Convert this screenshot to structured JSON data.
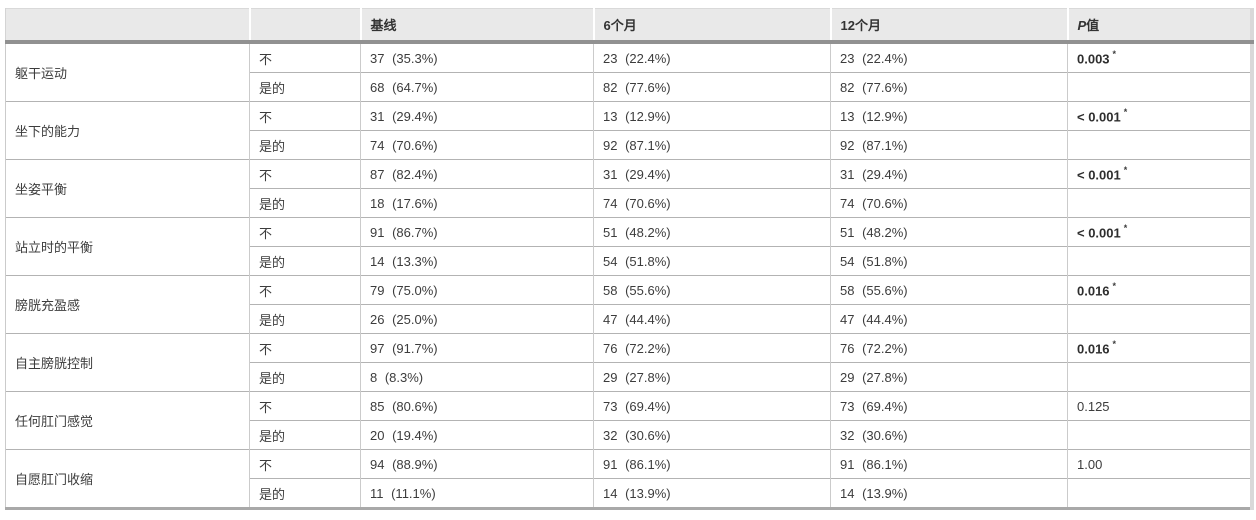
{
  "colors": {
    "header_bg": "#e9e9e9",
    "header_rule": "#919191",
    "grid_horizontal": "#b3b3b3",
    "grid_vertical": "#cbcbcb",
    "outer_right": "#d9d9d9",
    "outer_bottom": "#a9a9a9",
    "text": "#3c3c3c"
  },
  "table": {
    "header": {
      "col_category": "",
      "col_answer": "",
      "baseline": "基线",
      "month6": "6个月",
      "month12": "12个月",
      "p_italic": "P",
      "p_rest": "值"
    },
    "groups": [
      {
        "label": "躯干运动",
        "rows": [
          {
            "answer": "不",
            "baseline": "37 (35.3%)",
            "month6": "23 (22.4%)",
            "month12": "23 (22.4%)"
          },
          {
            "answer": "是的",
            "baseline": "68 (64.7%)",
            "month6": "82 (77.6%)",
            "month12": "82 (77.6%)"
          }
        ],
        "p": {
          "text": "0.003",
          "asterisk": "*",
          "bold": true
        }
      },
      {
        "label": "坐下的能力",
        "rows": [
          {
            "answer": "不",
            "baseline": "31 (29.4%)",
            "month6": "13 (12.9%)",
            "month12": "13 (12.9%)"
          },
          {
            "answer": "是的",
            "baseline": "74 (70.6%)",
            "month6": "92 (87.1%)",
            "month12": "92 (87.1%)"
          }
        ],
        "p": {
          "text": "< 0.001",
          "asterisk": "*",
          "bold": true
        }
      },
      {
        "label": "坐姿平衡",
        "rows": [
          {
            "answer": "不",
            "baseline": "87 (82.4%)",
            "month6": "31 (29.4%)",
            "month12": "31 (29.4%)"
          },
          {
            "answer": "是的",
            "baseline": "18 (17.6%)",
            "month6": "74 (70.6%)",
            "month12": "74 (70.6%)"
          }
        ],
        "p": {
          "text": "< 0.001",
          "asterisk": "*",
          "bold": true
        }
      },
      {
        "label": "站立时的平衡",
        "rows": [
          {
            "answer": "不",
            "baseline": "91 (86.7%)",
            "month6": "51 (48.2%)",
            "month12": "51 (48.2%)"
          },
          {
            "answer": "是的",
            "baseline": "14 (13.3%)",
            "month6": "54 (51.8%)",
            "month12": "54 (51.8%)"
          }
        ],
        "p": {
          "text": "< 0.001",
          "asterisk": "*",
          "bold": true
        }
      },
      {
        "label": "膀胱充盈感",
        "rows": [
          {
            "answer": "不",
            "baseline": "79 (75.0%)",
            "month6": "58 (55.6%)",
            "month12": "58 (55.6%)"
          },
          {
            "answer": "是的",
            "baseline": "26 (25.0%)",
            "month6": "47 (44.4%)",
            "month12": "47 (44.4%)"
          }
        ],
        "p": {
          "text": "0.016",
          "asterisk": "*",
          "bold": true
        }
      },
      {
        "label": "自主膀胱控制",
        "rows": [
          {
            "answer": "不",
            "baseline": "97 (91.7%)",
            "month6": "76 (72.2%)",
            "month12": "76 (72.2%)"
          },
          {
            "answer": "是的",
            "baseline": "8 (8.3%)",
            "month6": "29 (27.8%)",
            "month12": "29 (27.8%)"
          }
        ],
        "p": {
          "text": "0.016",
          "asterisk": "*",
          "bold": true
        }
      },
      {
        "label": "任何肛门感觉",
        "rows": [
          {
            "answer": "不",
            "baseline": "85 (80.6%)",
            "month6": "73 (69.4%)",
            "month12": "73 (69.4%)"
          },
          {
            "answer": "是的",
            "baseline": "20 (19.4%)",
            "month6": "32 (30.6%)",
            "month12": "32 (30.6%)"
          }
        ],
        "p": {
          "text": "0.125",
          "asterisk": "",
          "bold": false
        }
      },
      {
        "label": "自愿肛门收缩",
        "rows": [
          {
            "answer": "不",
            "baseline": "94 (88.9%)",
            "month6": "91 (86.1%)",
            "month12": "91 (86.1%)"
          },
          {
            "answer": "是的",
            "baseline": "11 (11.1%)",
            "month6": "14 (13.9%)",
            "month12": "14 (13.9%)"
          }
        ],
        "p": {
          "text": "1.00",
          "asterisk": "",
          "bold": false
        }
      }
    ]
  },
  "chart_data": {
    "type": "table",
    "columns": [
      "",
      "",
      "基线",
      "6个月",
      "12个月",
      "P值"
    ],
    "rows": [
      [
        "躯干运动",
        "不",
        "37 (35.3%)",
        "23 (22.4%)",
        "23 (22.4%)",
        "0.003 *"
      ],
      [
        "躯干运动",
        "是的",
        "68 (64.7%)",
        "82 (77.6%)",
        "82 (77.6%)",
        ""
      ],
      [
        "坐下的能力",
        "不",
        "31 (29.4%)",
        "13 (12.9%)",
        "13 (12.9%)",
        "< 0.001 *"
      ],
      [
        "坐下的能力",
        "是的",
        "74 (70.6%)",
        "92 (87.1%)",
        "92 (87.1%)",
        ""
      ],
      [
        "坐姿平衡",
        "不",
        "87 (82.4%)",
        "31 (29.4%)",
        "31 (29.4%)",
        "< 0.001 *"
      ],
      [
        "坐姿平衡",
        "是的",
        "18 (17.6%)",
        "74 (70.6%)",
        "74 (70.6%)",
        ""
      ],
      [
        "站立时的平衡",
        "不",
        "91 (86.7%)",
        "51 (48.2%)",
        "51 (48.2%)",
        "< 0.001 *"
      ],
      [
        "站立时的平衡",
        "是的",
        "14 (13.3%)",
        "54 (51.8%)",
        "54 (51.8%)",
        ""
      ],
      [
        "膀胱充盈感",
        "不",
        "79 (75.0%)",
        "58 (55.6%)",
        "58 (55.6%)",
        "0.016 *"
      ],
      [
        "膀胱充盈感",
        "是的",
        "26 (25.0%)",
        "47 (44.4%)",
        "47 (44.4%)",
        ""
      ],
      [
        "自主膀胱控制",
        "不",
        "97 (91.7%)",
        "76 (72.2%)",
        "76 (72.2%)",
        "0.016 *"
      ],
      [
        "自主膀胱控制",
        "是的",
        "8 (8.3%)",
        "29 (27.8%)",
        "29 (27.8%)",
        ""
      ],
      [
        "任何肛门感觉",
        "不",
        "85 (80.6%)",
        "73 (69.4%)",
        "73 (69.4%)",
        "0.125"
      ],
      [
        "任何肛门感觉",
        "是的",
        "20 (19.4%)",
        "32 (30.6%)",
        "32 (30.6%)",
        ""
      ],
      [
        "自愿肛门收缩",
        "不",
        "94 (88.9%)",
        "91 (86.1%)",
        "91 (86.1%)",
        "1.00"
      ],
      [
        "自愿肛门收缩",
        "是的",
        "11 (11.1%)",
        "14 (13.9%)",
        "14 (13.9%)",
        ""
      ]
    ]
  }
}
